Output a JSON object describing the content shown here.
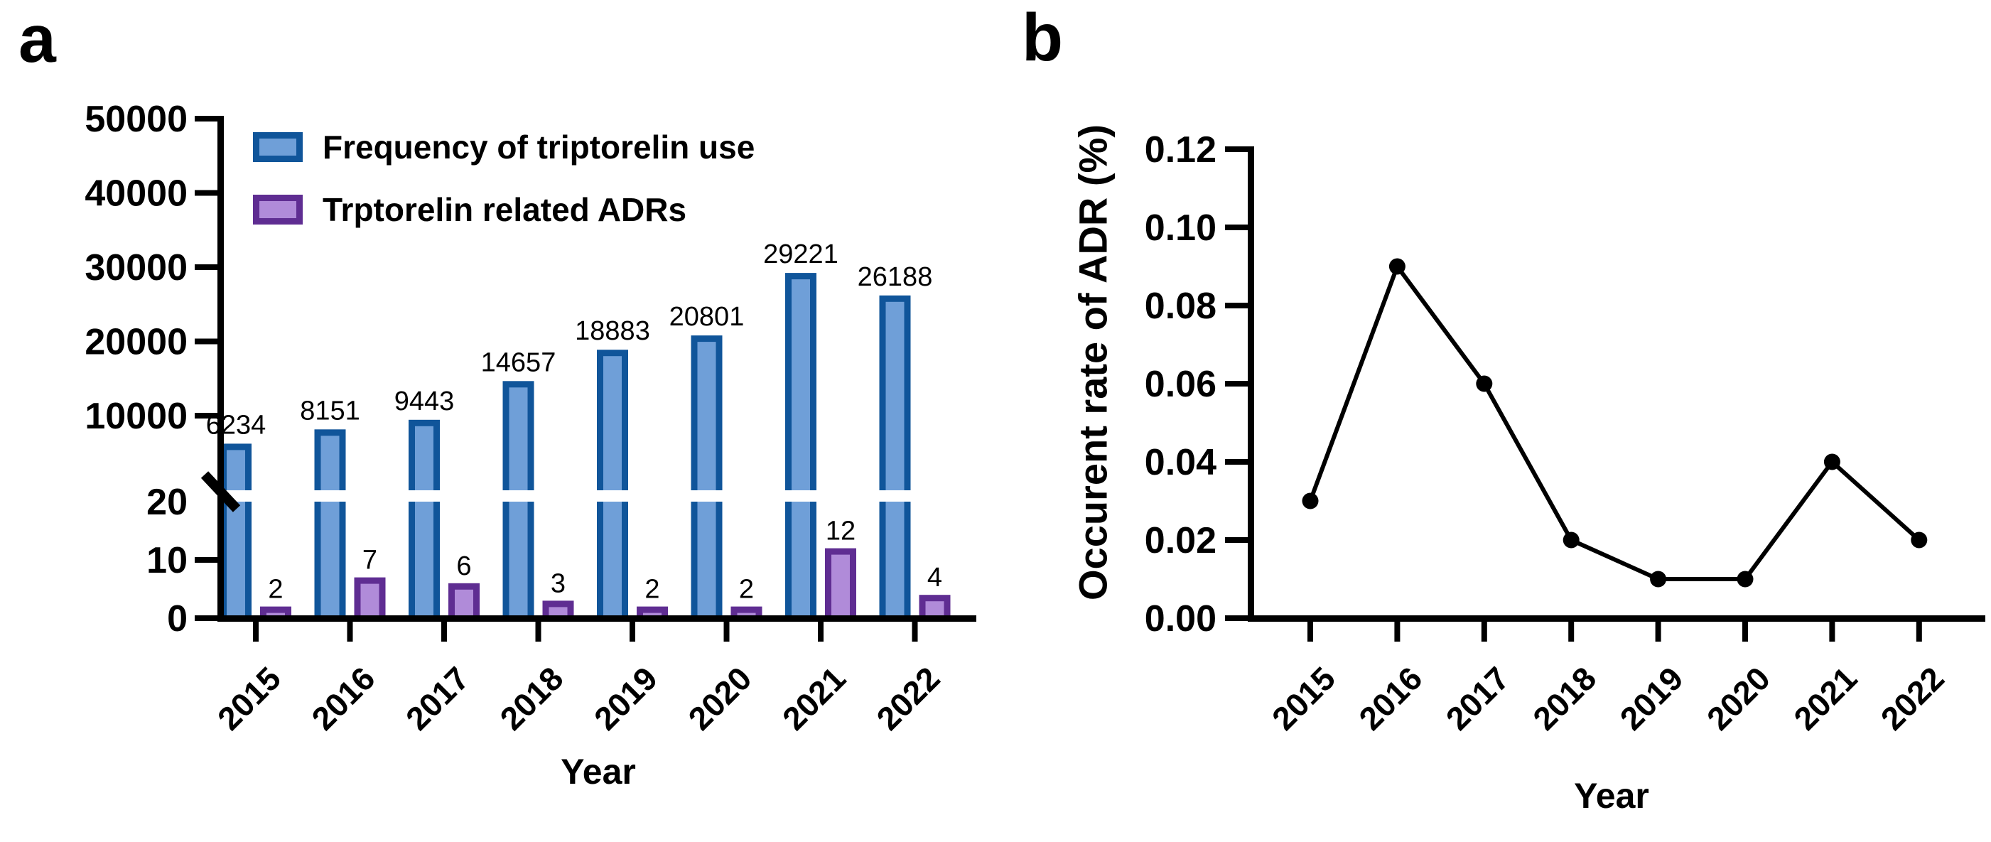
{
  "panels": {
    "a": {
      "label": "a"
    },
    "b": {
      "label": "b"
    }
  },
  "colors": {
    "frequency_fill": "#6F9FD8",
    "frequency_border": "#10559A",
    "adr_fill": "#B08BD9",
    "adr_border": "#5F2D92",
    "line": "#000000",
    "text": "#000000",
    "background": "#ffffff"
  },
  "chart_data": [
    {
      "panel": "a",
      "type": "bar",
      "categories": [
        "2015",
        "2016",
        "2017",
        "2018",
        "2019",
        "2020",
        "2021",
        "2022"
      ],
      "series": [
        {
          "name": "Frequency of triptorelin use",
          "fill": "#6F9FD8",
          "border": "#10559A",
          "values": [
            6234,
            8151,
            9443,
            14657,
            18883,
            20801,
            29221,
            26188
          ]
        },
        {
          "name": "Trptorelin related ADRs",
          "fill": "#B08BD9",
          "border": "#5F2D92",
          "values": [
            2,
            7,
            6,
            3,
            2,
            2,
            12,
            4
          ]
        }
      ],
      "bar_labels_shown": true,
      "axis_break": true,
      "upper_axis": {
        "ticks": [
          50000,
          40000,
          30000,
          20000,
          10000
        ],
        "labels": [
          "50000",
          "40000",
          "30000",
          "20000",
          "10000"
        ]
      },
      "lower_axis": {
        "ticks": [
          20,
          10,
          0
        ],
        "labels": [
          "20",
          "10",
          "0"
        ]
      },
      "xlabel": "Year",
      "legend_position": "upper-left-inside"
    },
    {
      "panel": "b",
      "type": "line",
      "x": [
        "2015",
        "2016",
        "2017",
        "2018",
        "2019",
        "2020",
        "2021",
        "2022"
      ],
      "values": [
        0.03,
        0.09,
        0.06,
        0.02,
        0.01,
        0.01,
        0.04,
        0.02
      ],
      "ylabel": "Occurent rate of ADR (%)",
      "xlabel": "Year",
      "yticks": [
        0,
        0.02,
        0.04,
        0.06,
        0.08,
        0.1,
        0.12
      ],
      "ytick_labels": [
        "0.00",
        "0.02",
        "0.04",
        "0.06",
        "0.08",
        "0.10",
        "0.12"
      ],
      "ylim": [
        0,
        0.12
      ],
      "marker": "filled-circle",
      "line_color": "#000000",
      "grid": false
    }
  ]
}
